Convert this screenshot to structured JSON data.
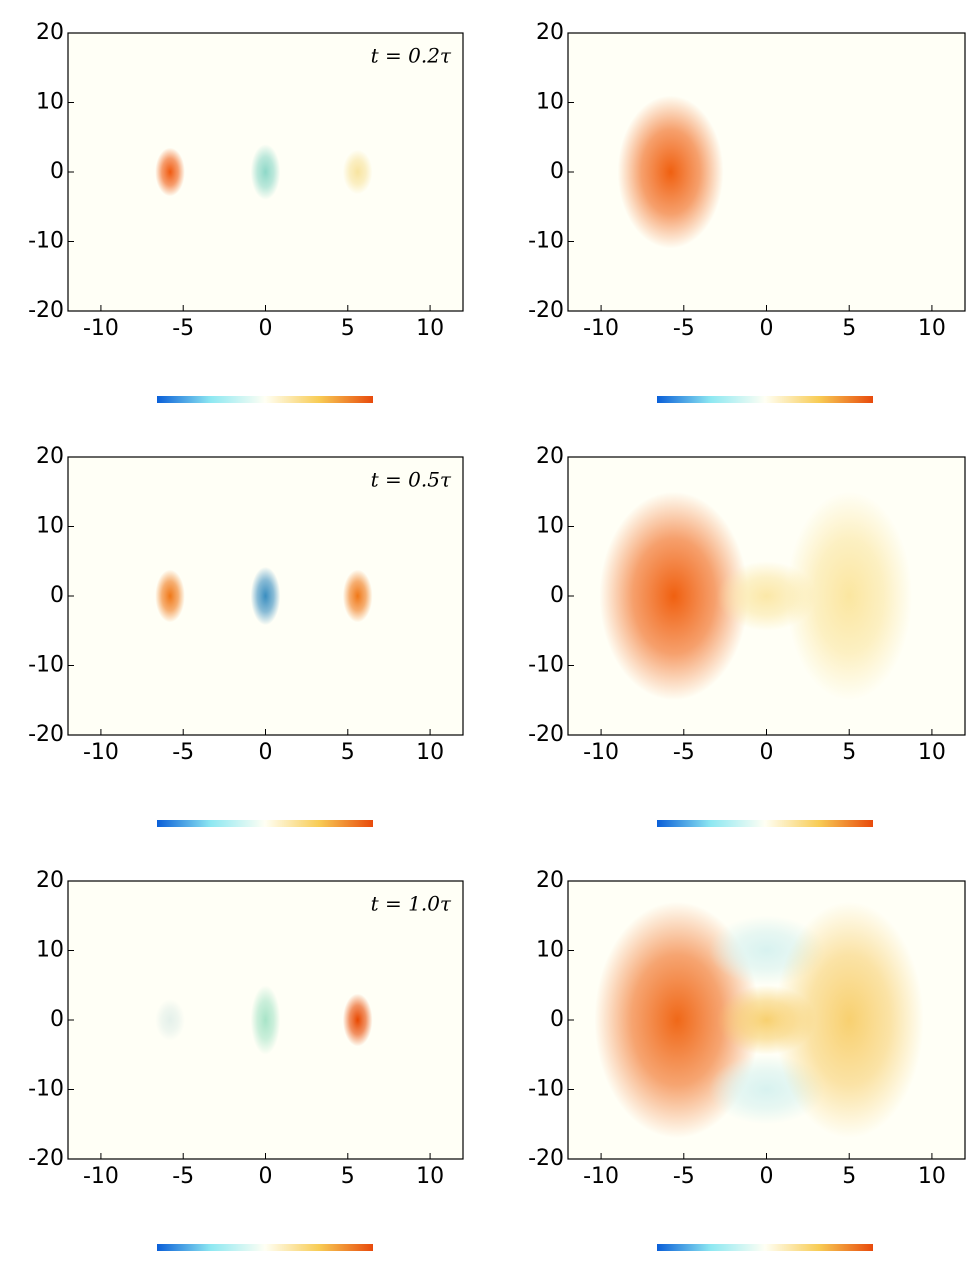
{
  "chart_data": [
    {
      "type": "heatmap",
      "annotation": "t = 0.2τ",
      "xlim": [
        -12,
        12
      ],
      "ylim": [
        -20,
        20
      ],
      "xticks": [
        -10,
        -5,
        0,
        5,
        10
      ],
      "yticks": [
        -20,
        -10,
        0,
        10,
        20
      ],
      "colorbar": [
        "#0a5fd8",
        "#8ee8f2",
        "#fffff4",
        "#f8cc55",
        "#e84a0c"
      ],
      "blobs": [
        {
          "x": -5.8,
          "y": 0,
          "rx": 0.9,
          "ry": 3.5,
          "color": "#f05a10"
        },
        {
          "x": 0,
          "y": 0,
          "rx": 0.9,
          "ry": 4,
          "color": "#8ed8c8"
        },
        {
          "x": 5.6,
          "y": 0,
          "rx": 0.9,
          "ry": 3.2,
          "color": "#f8e4a0"
        }
      ]
    },
    {
      "type": "heatmap",
      "xlim": [
        -12,
        12
      ],
      "ylim": [
        -20,
        20
      ],
      "xticks": [
        -10,
        -5,
        0,
        5,
        10
      ],
      "yticks": [
        -20,
        -10,
        0,
        10,
        20
      ],
      "colorbar": [
        "#0a5fd8",
        "#8ee8f2",
        "#fffff4",
        "#f8cc55",
        "#e84a0c"
      ],
      "blobs": [
        {
          "x": -5.8,
          "y": 0,
          "rx": 3.2,
          "ry": 11,
          "color": "#f06010"
        }
      ]
    },
    {
      "type": "heatmap",
      "annotation": "t = 0.5τ",
      "xlim": [
        -12,
        12
      ],
      "ylim": [
        -20,
        20
      ],
      "xticks": [
        -10,
        -5,
        0,
        5,
        10
      ],
      "yticks": [
        -20,
        -10,
        0,
        10,
        20
      ],
      "colorbar": [
        "#0a5fd8",
        "#8ee8f2",
        "#fffff4",
        "#f8cc55",
        "#e84a0c"
      ],
      "blobs": [
        {
          "x": -5.8,
          "y": 0,
          "rx": 0.9,
          "ry": 3.8,
          "color": "#f07818"
        },
        {
          "x": 0,
          "y": 0,
          "rx": 0.9,
          "ry": 4.2,
          "color": "#3a8ec0"
        },
        {
          "x": 5.6,
          "y": 0,
          "rx": 0.9,
          "ry": 3.8,
          "color": "#f07818"
        }
      ]
    },
    {
      "type": "heatmap",
      "xlim": [
        -12,
        12
      ],
      "ylim": [
        -20,
        20
      ],
      "xticks": [
        -10,
        -5,
        0,
        5,
        10
      ],
      "yticks": [
        -20,
        -10,
        0,
        10,
        20
      ],
      "colorbar": [
        "#0a5fd8",
        "#8ee8f2",
        "#fffff4",
        "#f8cc55",
        "#e84a0c"
      ],
      "blobs": [
        {
          "x": -5.6,
          "y": 0,
          "rx": 4.5,
          "ry": 15,
          "color": "#f06010"
        },
        {
          "x": 0,
          "y": 0,
          "rx": 3,
          "ry": 5,
          "color": "#fbe8a8"
        },
        {
          "x": 5,
          "y": 0,
          "rx": 3.8,
          "ry": 15,
          "color": "#fbe6a0"
        }
      ]
    },
    {
      "type": "heatmap",
      "annotation": "t = 1.0τ",
      "xlim": [
        -12,
        12
      ],
      "ylim": [
        -20,
        20
      ],
      "xticks": [
        -10,
        -5,
        0,
        5,
        10
      ],
      "yticks": [
        -20,
        -10,
        0,
        10,
        20
      ],
      "colorbar": [
        "#0a5fd8",
        "#8ee8f2",
        "#fffff4",
        "#f8cc55",
        "#e84a0c"
      ],
      "blobs": [
        {
          "x": -5.8,
          "y": 0,
          "rx": 0.9,
          "ry": 3,
          "color": "#e4f0ea"
        },
        {
          "x": 0,
          "y": 0,
          "rx": 0.9,
          "ry": 5,
          "color": "#a8e4c8"
        },
        {
          "x": 5.6,
          "y": 0,
          "rx": 0.9,
          "ry": 3.8,
          "color": "#e84800"
        }
      ]
    },
    {
      "type": "heatmap",
      "xlim": [
        -12,
        12
      ],
      "ylim": [
        -20,
        20
      ],
      "xticks": [
        -10,
        -5,
        0,
        5,
        10
      ],
      "yticks": [
        -20,
        -10,
        0,
        10,
        20
      ],
      "colorbar": [
        "#0a5fd8",
        "#8ee8f2",
        "#fffff4",
        "#f8cc55",
        "#e84a0c"
      ],
      "blobs": [
        {
          "x": -5.4,
          "y": 0,
          "rx": 5,
          "ry": 17,
          "color": "#f06818"
        },
        {
          "x": 0,
          "y": 10,
          "rx": 3.5,
          "ry": 5,
          "color": "#d8f2f0"
        },
        {
          "x": 0,
          "y": -10,
          "rx": 3.5,
          "ry": 5,
          "color": "#d8f2f0"
        },
        {
          "x": 0,
          "y": 0,
          "rx": 3,
          "ry": 5,
          "color": "#f8d070"
        },
        {
          "x": 5,
          "y": 0,
          "rx": 4.5,
          "ry": 17,
          "color": "#f8d070"
        }
      ]
    }
  ]
}
